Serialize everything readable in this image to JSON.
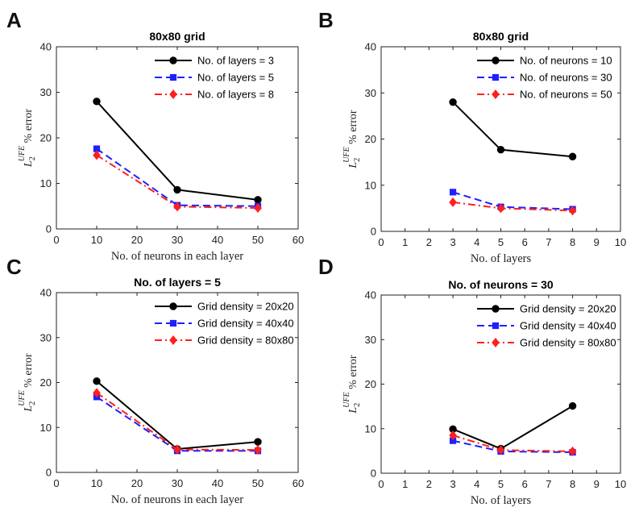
{
  "chart_data": [
    {
      "letter": "A",
      "type": "line",
      "title": "80x80 grid",
      "xlabel": "No. of neurons in each layer",
      "ylabel_parts": [
        "L",
        "2",
        "UFE",
        " % error"
      ],
      "xlim": [
        0,
        60
      ],
      "ylim": [
        0,
        40
      ],
      "xticks": [
        0,
        10,
        20,
        30,
        40,
        50,
        60
      ],
      "yticks": [
        0,
        10,
        20,
        30,
        40
      ],
      "x": [
        10,
        30,
        50
      ],
      "series": [
        {
          "name": "No. of layers = 3",
          "color": "#000000",
          "style": "solid",
          "marker": "circle",
          "values": [
            28.0,
            8.6,
            6.4
          ]
        },
        {
          "name": "No. of layers = 5",
          "color": "#1f1fff",
          "style": "dashed",
          "marker": "square",
          "values": [
            17.6,
            5.2,
            5.0
          ]
        },
        {
          "name": "No. of layers = 8",
          "color": "#ff1f1f",
          "style": "dashdot",
          "marker": "diamond",
          "values": [
            16.2,
            4.9,
            4.6
          ]
        }
      ]
    },
    {
      "letter": "B",
      "type": "line",
      "title": "80x80 grid",
      "xlabel": "No. of layers",
      "ylabel_parts": [
        "L",
        "2",
        "UFE",
        " % error"
      ],
      "xlim": [
        0,
        10
      ],
      "ylim": [
        0,
        40
      ],
      "xticks": [
        0,
        1,
        2,
        3,
        4,
        5,
        6,
        7,
        8,
        9,
        10
      ],
      "yticks": [
        0,
        10,
        20,
        30,
        40
      ],
      "x": [
        3,
        5,
        8
      ],
      "series": [
        {
          "name": "No. of neurons = 10",
          "color": "#000000",
          "style": "solid",
          "marker": "circle",
          "values": [
            28.0,
            17.7,
            16.2
          ]
        },
        {
          "name": "No. of neurons = 30",
          "color": "#1f1fff",
          "style": "dashed",
          "marker": "square",
          "values": [
            8.5,
            5.3,
            4.8
          ]
        },
        {
          "name": "No. of neurons = 50",
          "color": "#ff1f1f",
          "style": "dashdot",
          "marker": "diamond",
          "values": [
            6.3,
            5.0,
            4.5
          ]
        }
      ]
    },
    {
      "letter": "C",
      "type": "line",
      "title": "No. of layers = 5",
      "xlabel": "No. of neurons in each layer",
      "ylabel_parts": [
        "L",
        "2",
        "UFE",
        " % error"
      ],
      "xlim": [
        0,
        60
      ],
      "ylim": [
        0,
        40
      ],
      "xticks": [
        0,
        10,
        20,
        30,
        40,
        50,
        60
      ],
      "yticks": [
        0,
        10,
        20,
        30,
        40
      ],
      "x": [
        10,
        30,
        50
      ],
      "series": [
        {
          "name": "Grid density = 20x20",
          "color": "#000000",
          "style": "solid",
          "marker": "circle",
          "values": [
            20.3,
            5.2,
            6.8
          ]
        },
        {
          "name": "Grid density = 40x40",
          "color": "#1f1fff",
          "style": "dashed",
          "marker": "square",
          "values": [
            16.8,
            4.8,
            4.8
          ]
        },
        {
          "name": "Grid density = 80x80",
          "color": "#ff1f1f",
          "style": "dashdot",
          "marker": "diamond",
          "values": [
            17.7,
            5.1,
            5.0
          ]
        }
      ]
    },
    {
      "letter": "D",
      "type": "line",
      "title": "No. of neurons = 30",
      "xlabel": "No. of layers",
      "ylabel_parts": [
        "L",
        "2",
        "UFE",
        " % error"
      ],
      "xlim": [
        0,
        10
      ],
      "ylim": [
        0,
        40
      ],
      "xticks": [
        0,
        1,
        2,
        3,
        4,
        5,
        6,
        7,
        8,
        9,
        10
      ],
      "yticks": [
        0,
        10,
        20,
        30,
        40
      ],
      "x": [
        3,
        5,
        8
      ],
      "series": [
        {
          "name": "Grid density = 20x20",
          "color": "#000000",
          "style": "solid",
          "marker": "circle",
          "values": [
            9.9,
            5.5,
            15.1
          ]
        },
        {
          "name": "Grid density = 40x40",
          "color": "#1f1fff",
          "style": "dashed",
          "marker": "square",
          "values": [
            7.3,
            4.9,
            4.7
          ]
        },
        {
          "name": "Grid density = 80x80",
          "color": "#ff1f1f",
          "style": "dashdot",
          "marker": "diamond",
          "values": [
            8.5,
            5.2,
            4.9
          ]
        }
      ]
    }
  ]
}
